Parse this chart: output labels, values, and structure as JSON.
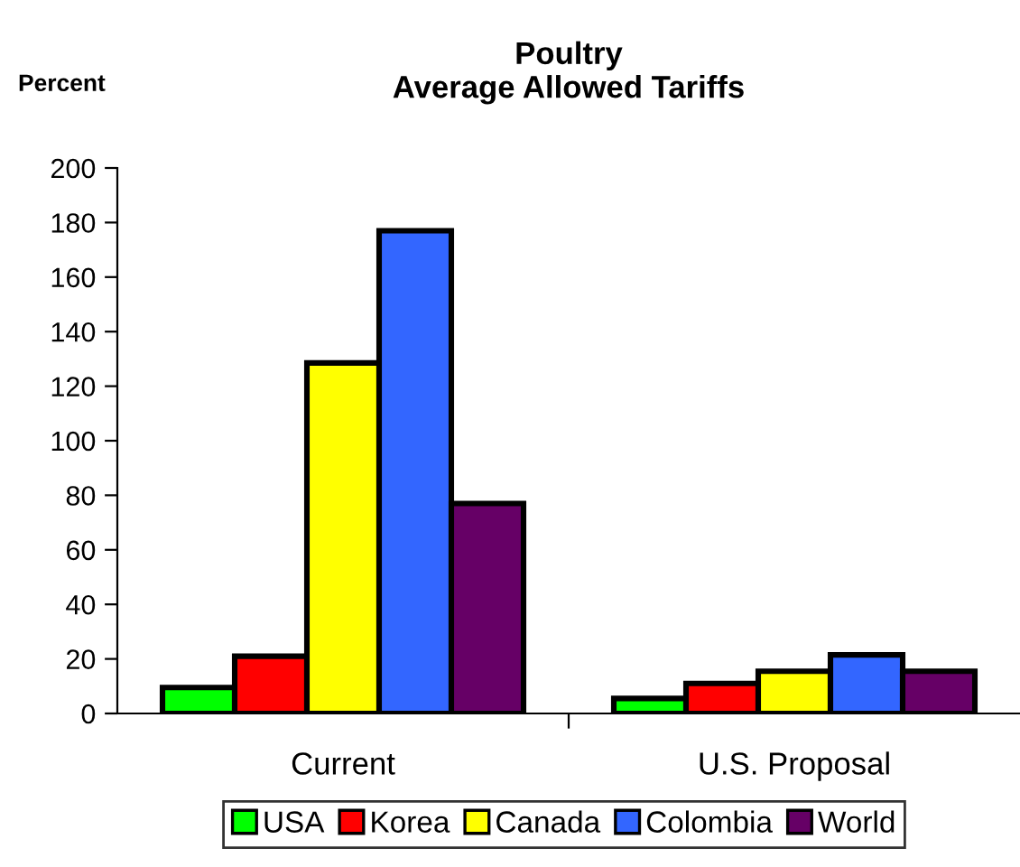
{
  "chart_data": {
    "type": "bar",
    "title": "Poultry\nAverage Allowed Tariffs",
    "ylabel": "Percent",
    "categories": [
      "Current",
      "U.S. Proposal"
    ],
    "series": [
      {
        "name": "USA",
        "color": "#00ff00",
        "values": [
          9.5,
          5.5
        ]
      },
      {
        "name": "Korea",
        "color": "#ff0000",
        "values": [
          21,
          11
        ]
      },
      {
        "name": "Canada",
        "color": "#ffff00",
        "values": [
          128.5,
          15.5
        ]
      },
      {
        "name": "Colombia",
        "color": "#3366ff",
        "values": [
          177,
          21.5
        ]
      },
      {
        "name": "World",
        "color": "#660066",
        "values": [
          77,
          15.5
        ]
      }
    ],
    "ylim": [
      0,
      200
    ],
    "yticks": [
      0,
      20,
      40,
      60,
      80,
      100,
      120,
      140,
      160,
      180,
      200
    ],
    "grid": false,
    "legend": "bottom"
  }
}
